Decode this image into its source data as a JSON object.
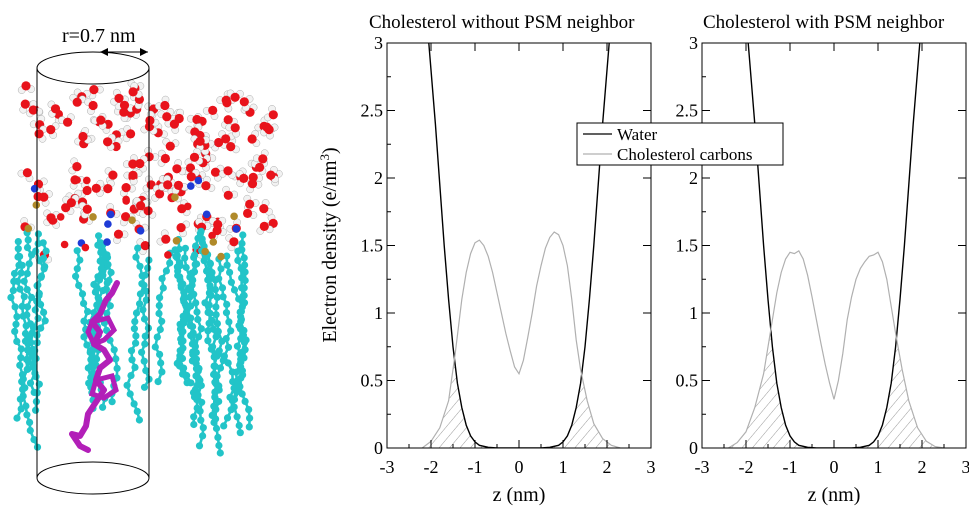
{
  "figure": {
    "left_panel": {
      "radius_label": "r=0.7 nm",
      "colors": {
        "oxygen": "#e8131b",
        "hydrogen": "#f2f2f2",
        "carbon": "#22c4c8",
        "nitrogen": "#1f3bd6",
        "phosphorus": "#b08a2a",
        "cholesterol": "#b21fb8"
      }
    },
    "shared": {
      "ylabel_prefix": "Electron density (e/nm",
      "ylabel_sup": "3",
      "ylabel_suffix": ")",
      "legend": {
        "placement": "top-center",
        "items": [
          {
            "label": "Water",
            "color": "#000000"
          },
          {
            "label": "Cholesterol carbons",
            "color": "#b0b0b0"
          }
        ]
      }
    }
  },
  "chart_data": [
    {
      "type": "line",
      "title": "Cholesterol without PSM neighbor",
      "xlabel": "z (nm)",
      "xlim": [
        -3,
        3
      ],
      "ylim": [
        0,
        3
      ],
      "xticks": [
        "-3",
        "-2",
        "-1",
        "0",
        "1",
        "2",
        "3"
      ],
      "yticks": [
        "0",
        "0.5",
        "1",
        "1.5",
        "2",
        "2.5",
        "3"
      ],
      "grid": false,
      "hatched_overlap": true,
      "series": [
        {
          "name": "Water",
          "color": "#000000",
          "points": [
            [
              -2.05,
              3.0
            ],
            [
              -1.9,
              2.4
            ],
            [
              -1.8,
              1.95
            ],
            [
              -1.7,
              1.5
            ],
            [
              -1.6,
              1.1
            ],
            [
              -1.5,
              0.75
            ],
            [
              -1.4,
              0.48
            ],
            [
              -1.3,
              0.3
            ],
            [
              -1.2,
              0.17
            ],
            [
              -1.1,
              0.09
            ],
            [
              -1.0,
              0.045
            ],
            [
              -0.9,
              0.02
            ],
            [
              -0.7,
              0.005
            ],
            [
              -0.5,
              0.0
            ],
            [
              0.5,
              0.0
            ],
            [
              0.7,
              0.005
            ],
            [
              0.9,
              0.02
            ],
            [
              1.0,
              0.045
            ],
            [
              1.1,
              0.09
            ],
            [
              1.2,
              0.17
            ],
            [
              1.3,
              0.3
            ],
            [
              1.4,
              0.48
            ],
            [
              1.5,
              0.75
            ],
            [
              1.6,
              1.1
            ],
            [
              1.7,
              1.5
            ],
            [
              1.8,
              1.95
            ],
            [
              1.9,
              2.4
            ],
            [
              2.05,
              3.0
            ]
          ]
        },
        {
          "name": "Cholesterol carbons",
          "color": "#b0b0b0",
          "points": [
            [
              -2.2,
              0.0
            ],
            [
              -2.0,
              0.05
            ],
            [
              -1.8,
              0.15
            ],
            [
              -1.6,
              0.35
            ],
            [
              -1.45,
              0.7
            ],
            [
              -1.3,
              1.1
            ],
            [
              -1.2,
              1.3
            ],
            [
              -1.1,
              1.44
            ],
            [
              -1.0,
              1.52
            ],
            [
              -0.9,
              1.54
            ],
            [
              -0.8,
              1.5
            ],
            [
              -0.7,
              1.42
            ],
            [
              -0.6,
              1.3
            ],
            [
              -0.5,
              1.15
            ],
            [
              -0.4,
              1.0
            ],
            [
              -0.3,
              0.85
            ],
            [
              -0.2,
              0.72
            ],
            [
              -0.1,
              0.6
            ],
            [
              0.0,
              0.55
            ],
            [
              0.1,
              0.65
            ],
            [
              0.2,
              0.82
            ],
            [
              0.3,
              1.0
            ],
            [
              0.4,
              1.2
            ],
            [
              0.5,
              1.35
            ],
            [
              0.6,
              1.48
            ],
            [
              0.7,
              1.56
            ],
            [
              0.8,
              1.6
            ],
            [
              0.9,
              1.58
            ],
            [
              1.0,
              1.5
            ],
            [
              1.1,
              1.35
            ],
            [
              1.2,
              1.1
            ],
            [
              1.3,
              0.8
            ],
            [
              1.4,
              0.58
            ],
            [
              1.55,
              0.35
            ],
            [
              1.7,
              0.18
            ],
            [
              1.9,
              0.07
            ],
            [
              2.1,
              0.02
            ],
            [
              2.3,
              0.0
            ]
          ]
        }
      ]
    },
    {
      "type": "line",
      "title": "Cholesterol with PSM neighbor",
      "xlabel": "z (nm)",
      "xlim": [
        -3,
        3
      ],
      "ylim": [
        0,
        3
      ],
      "xticks": [
        "-3",
        "-2",
        "-1",
        "0",
        "1",
        "2",
        "3"
      ],
      "yticks": [
        "0",
        "0.5",
        "1",
        "1.5",
        "2",
        "2.5",
        "3"
      ],
      "grid": false,
      "hatched_overlap": true,
      "series": [
        {
          "name": "Water",
          "color": "#000000",
          "points": [
            [
              -1.95,
              3.0
            ],
            [
              -1.8,
              2.4
            ],
            [
              -1.7,
              1.95
            ],
            [
              -1.6,
              1.5
            ],
            [
              -1.5,
              1.1
            ],
            [
              -1.4,
              0.75
            ],
            [
              -1.3,
              0.48
            ],
            [
              -1.2,
              0.3
            ],
            [
              -1.1,
              0.17
            ],
            [
              -1.0,
              0.09
            ],
            [
              -0.9,
              0.045
            ],
            [
              -0.8,
              0.02
            ],
            [
              -0.6,
              0.005
            ],
            [
              -0.4,
              0.0
            ],
            [
              0.4,
              0.0
            ],
            [
              0.6,
              0.005
            ],
            [
              0.8,
              0.02
            ],
            [
              0.9,
              0.045
            ],
            [
              1.0,
              0.09
            ],
            [
              1.1,
              0.17
            ],
            [
              1.2,
              0.3
            ],
            [
              1.3,
              0.48
            ],
            [
              1.4,
              0.75
            ],
            [
              1.5,
              1.1
            ],
            [
              1.6,
              1.5
            ],
            [
              1.7,
              1.95
            ],
            [
              1.8,
              2.4
            ],
            [
              1.95,
              3.0
            ]
          ]
        },
        {
          "name": "Cholesterol carbons",
          "color": "#b0b0b0",
          "points": [
            [
              -2.4,
              0.0
            ],
            [
              -2.2,
              0.04
            ],
            [
              -2.0,
              0.12
            ],
            [
              -1.8,
              0.3
            ],
            [
              -1.6,
              0.55
            ],
            [
              -1.45,
              0.85
            ],
            [
              -1.3,
              1.15
            ],
            [
              -1.2,
              1.3
            ],
            [
              -1.1,
              1.4
            ],
            [
              -1.0,
              1.45
            ],
            [
              -0.9,
              1.44
            ],
            [
              -0.8,
              1.46
            ],
            [
              -0.7,
              1.4
            ],
            [
              -0.6,
              1.28
            ],
            [
              -0.5,
              1.12
            ],
            [
              -0.4,
              0.95
            ],
            [
              -0.3,
              0.78
            ],
            [
              -0.2,
              0.62
            ],
            [
              -0.1,
              0.48
            ],
            [
              0.0,
              0.36
            ],
            [
              0.1,
              0.5
            ],
            [
              0.2,
              0.7
            ],
            [
              0.3,
              0.95
            ],
            [
              0.4,
              1.12
            ],
            [
              0.5,
              1.25
            ],
            [
              0.6,
              1.33
            ],
            [
              0.7,
              1.38
            ],
            [
              0.8,
              1.42
            ],
            [
              0.9,
              1.43
            ],
            [
              1.0,
              1.45
            ],
            [
              1.1,
              1.38
            ],
            [
              1.2,
              1.25
            ],
            [
              1.3,
              1.05
            ],
            [
              1.4,
              0.85
            ],
            [
              1.55,
              0.58
            ],
            [
              1.7,
              0.35
            ],
            [
              1.9,
              0.15
            ],
            [
              2.1,
              0.05
            ],
            [
              2.3,
              0.01
            ],
            [
              2.5,
              0.0
            ]
          ]
        }
      ]
    }
  ]
}
